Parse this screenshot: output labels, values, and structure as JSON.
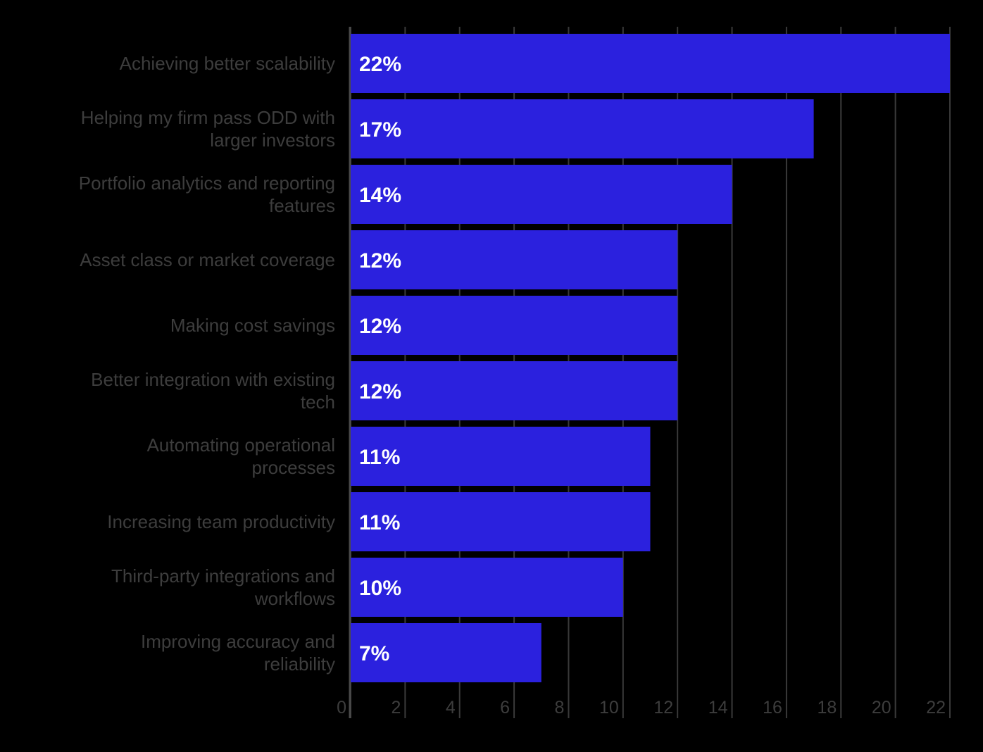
{
  "chart_data": {
    "type": "bar",
    "orientation": "horizontal",
    "title": "",
    "xlabel": "",
    "ylabel": "",
    "categories": [
      [
        "Achieving better scalability"
      ],
      [
        "Helping my firm pass ODD with",
        "larger investors"
      ],
      [
        "Portfolio analytics and reporting",
        "features"
      ],
      [
        "Asset class or market coverage"
      ],
      [
        "Making cost savings"
      ],
      [
        "Better integration with existing",
        "tech"
      ],
      [
        "Automating operational",
        "processes"
      ],
      [
        "Increasing team productivity"
      ],
      [
        "Third-party integrations and",
        "workflows"
      ],
      [
        "Improving accuracy and",
        "reliability"
      ]
    ],
    "values": [
      22,
      17,
      14,
      12,
      12,
      12,
      11,
      11,
      10,
      7
    ],
    "value_labels": [
      "22%",
      "17%",
      "14%",
      "12%",
      "12%",
      "12%",
      "11%",
      "11%",
      "10%",
      "7%"
    ],
    "xlim": [
      0,
      22
    ],
    "xticks": [
      0,
      2,
      4,
      6,
      8,
      10,
      12,
      14,
      16,
      18,
      20,
      22
    ],
    "grid": true,
    "bar_color": "#2b21de",
    "grid_color": "#3a3a3a",
    "text_color": "#3d3d3d",
    "value_label_color": "#ffffff",
    "background": "#000000"
  }
}
